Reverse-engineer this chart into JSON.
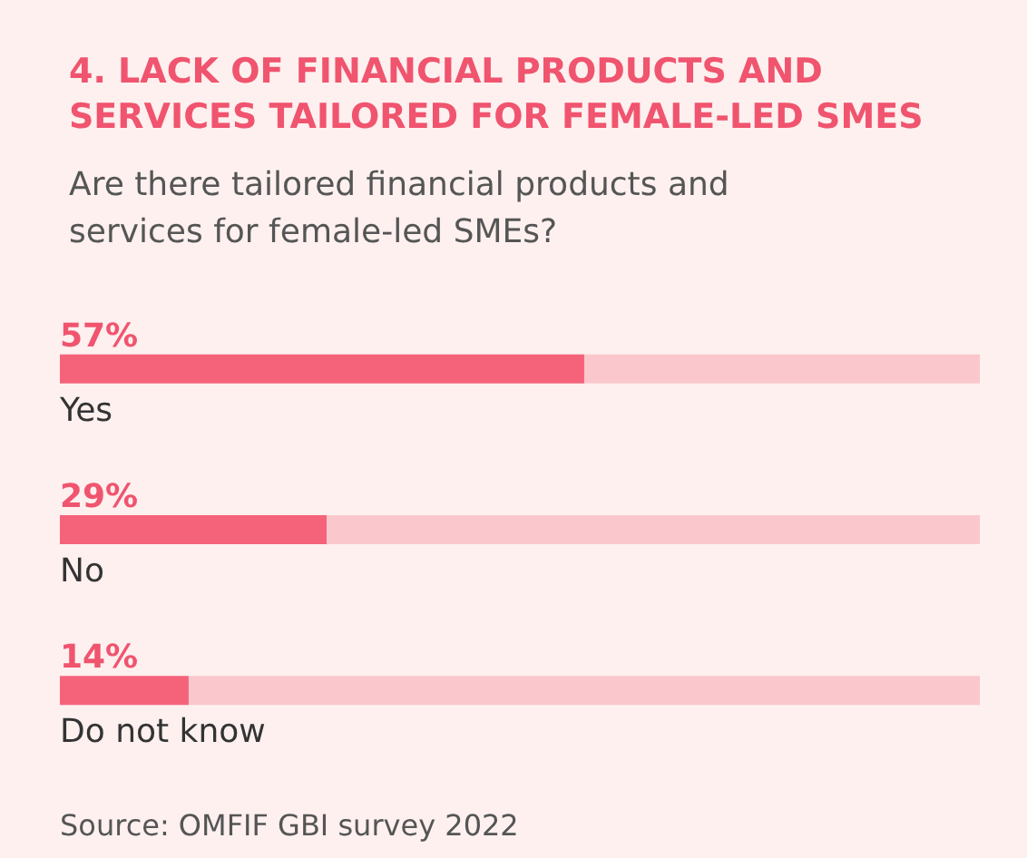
{
  "chart_data": {
    "type": "bar",
    "orientation": "horizontal",
    "stacked": true,
    "title": "4. LACK OF FINANCIAL PRODUCTS AND SERVICES TAILORED FOR FEMALE-LED SMES",
    "subtitle": "Are there tailored financial products and services for female-led SMEs?",
    "categories": [
      "Yes",
      "No",
      "Do not know"
    ],
    "series": [
      {
        "color": "#f4637a",
        "values": [
          57,
          29,
          14
        ],
        "value_labels": [
          "57%",
          "29%",
          "14%"
        ]
      },
      {
        "color": "#fac8cc",
        "values": [
          43,
          71,
          86
        ]
      }
    ],
    "xlim": [
      0,
      100
    ],
    "tick_labels": "y",
    "annotations": [
      "Source: OMFIF GBI survey 2022"
    ]
  }
}
